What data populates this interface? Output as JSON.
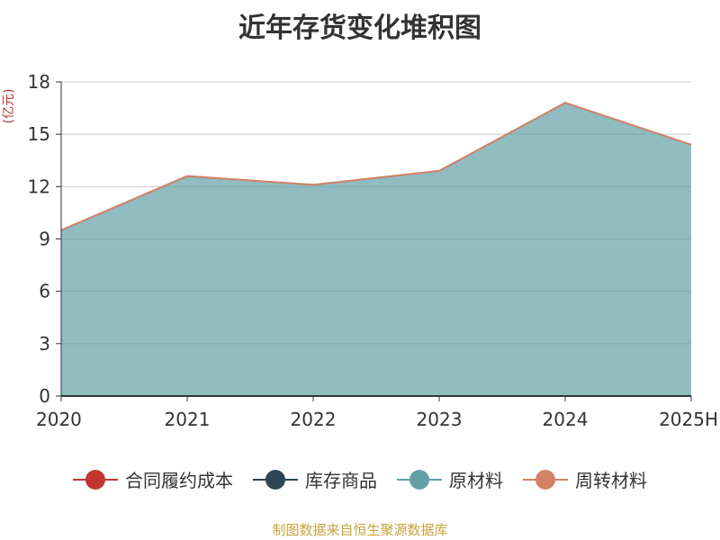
{
  "chart_data": {
    "type": "area",
    "title": "近年存货变化堆积图",
    "ylabel": "(亿元)",
    "categories": [
      "2020",
      "2021",
      "2022",
      "2023",
      "2024",
      "2025H"
    ],
    "ylim": [
      0,
      18
    ],
    "yticks": [
      0,
      3,
      6,
      9,
      12,
      15,
      18
    ],
    "stacked": true,
    "grid": true,
    "legend": "bottom",
    "series": [
      {
        "name": "合同履约成本",
        "color": "#c23531",
        "values": [
          0,
          0,
          0,
          0,
          0,
          0
        ]
      },
      {
        "name": "库存商品",
        "color": "#2f4554",
        "values": [
          0,
          0,
          0,
          0,
          0,
          0
        ]
      },
      {
        "name": "原材料",
        "color": "#61a0a8",
        "values": [
          9.5,
          12.6,
          12.1,
          12.9,
          16.8,
          14.4
        ]
      },
      {
        "name": "周转材料",
        "color": "#d48265",
        "values": [
          0,
          0,
          0,
          0,
          0,
          0
        ]
      }
    ]
  },
  "footer": {
    "source": "制图数据来自恒生聚源数据库"
  }
}
